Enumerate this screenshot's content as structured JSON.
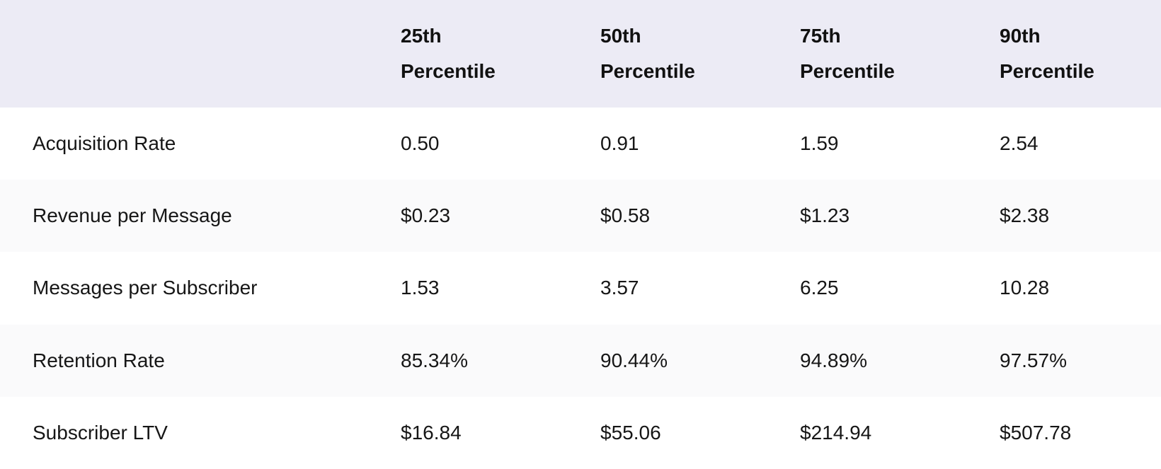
{
  "colors": {
    "header_background": "#ECEBF5",
    "row_background": "#FFFFFF",
    "row_alt_background": "#FAFAFB",
    "text": "#161616",
    "header_text": "#111111"
  },
  "chart_data": {
    "type": "table",
    "columns": [
      "",
      "25th Percentile",
      "50th Percentile",
      "75th Percentile",
      "90th Percentile"
    ],
    "rows": [
      {
        "label": "Acquisition Rate",
        "values": [
          "0.50",
          "0.91",
          "1.59",
          "2.54"
        ]
      },
      {
        "label": "Revenue per Message",
        "values": [
          "$0.23",
          "$0.58",
          "$1.23",
          "$2.38"
        ]
      },
      {
        "label": "Messages per Subscriber",
        "values": [
          "1.53",
          "3.57",
          "6.25",
          "10.28"
        ]
      },
      {
        "label": "Retention Rate",
        "values": [
          "85.34%",
          "90.44%",
          "94.89%",
          "97.57%"
        ]
      },
      {
        "label": "Subscriber LTV",
        "values": [
          "$16.84",
          "$55.06",
          "$214.94",
          "$507.78"
        ]
      }
    ]
  }
}
